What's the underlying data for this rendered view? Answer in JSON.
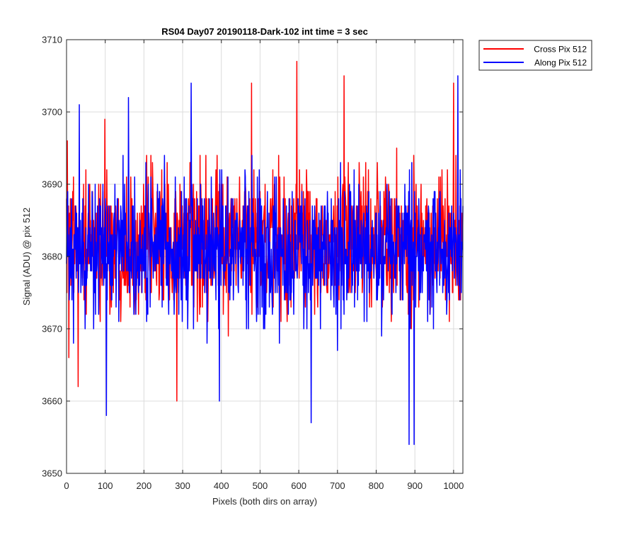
{
  "chart_data": {
    "type": "line",
    "title": "RS04 Day07 20190118-Dark-102 int time = 3 sec",
    "xlabel": "Pixels (both dirs on array)",
    "ylabel": "Signal (ADU) @ pix 512",
    "xlim": [
      0,
      1024
    ],
    "ylim": [
      3650,
      3710
    ],
    "xticks": [
      0,
      100,
      200,
      300,
      400,
      500,
      600,
      700,
      800,
      900,
      1000
    ],
    "yticks": [
      3650,
      3660,
      3670,
      3680,
      3690,
      3700,
      3710
    ],
    "grid": true,
    "legend_placement": "outside-top-right",
    "x_step": 1,
    "series": [
      {
        "name": "Cross Pix 512",
        "color": "#ff0000",
        "summary": {
          "mean": 3682,
          "min": 3660,
          "max": 3707
        },
        "notable_points": [
          {
            "x": 2,
            "y": 3696
          },
          {
            "x": 6,
            "y": 3666
          },
          {
            "x": 30,
            "y": 3662
          },
          {
            "x": 99,
            "y": 3699
          },
          {
            "x": 285,
            "y": 3660
          },
          {
            "x": 478,
            "y": 3704
          },
          {
            "x": 595,
            "y": 3707
          },
          {
            "x": 717,
            "y": 3705
          },
          {
            "x": 1000,
            "y": 3704
          }
        ]
      },
      {
        "name": "Along Pix 512",
        "color": "#0000ff",
        "summary": {
          "mean": 3681,
          "min": 3654,
          "max": 3705
        },
        "notable_points": [
          {
            "x": 33,
            "y": 3701
          },
          {
            "x": 103,
            "y": 3658
          },
          {
            "x": 160,
            "y": 3702
          },
          {
            "x": 322,
            "y": 3704
          },
          {
            "x": 395,
            "y": 3660
          },
          {
            "x": 632,
            "y": 3657
          },
          {
            "x": 885,
            "y": 3654
          },
          {
            "x": 898,
            "y": 3654
          },
          {
            "x": 1011,
            "y": 3705
          }
        ]
      }
    ]
  }
}
